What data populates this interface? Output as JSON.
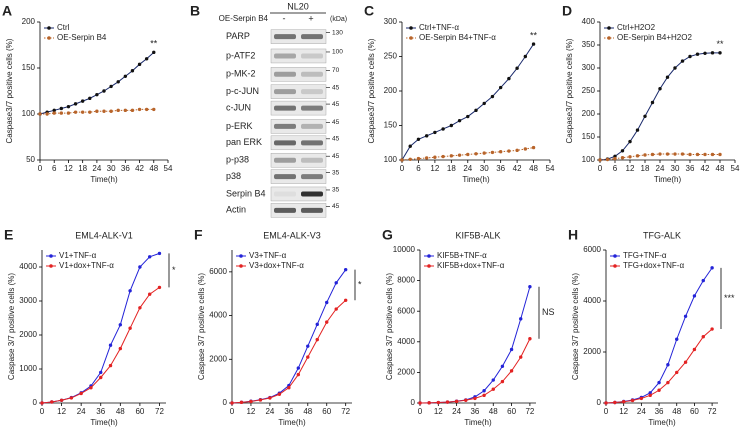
{
  "chart_data": [
    {
      "type": "line",
      "panel": "A",
      "ylabel": "Caspase3/7 positive cells (%)",
      "xlabel": "Time(h)",
      "x": [
        0,
        3,
        6,
        9,
        12,
        15,
        18,
        21,
        24,
        27,
        30,
        33,
        36,
        39,
        42,
        45,
        48
      ],
      "xlim": [
        0,
        54
      ],
      "xticks": [
        0,
        6,
        12,
        18,
        24,
        30,
        36,
        42,
        48,
        54
      ],
      "ylim": [
        50,
        200
      ],
      "yticks": [
        50,
        100,
        150,
        200
      ],
      "annotation": "**",
      "series": [
        {
          "name": "Ctrl",
          "color": "#1a2a6c",
          "line_style": "solid",
          "values": [
            100,
            102,
            104,
            106,
            108,
            111,
            114,
            117,
            121,
            125,
            130,
            135,
            141,
            147,
            154,
            160,
            167
          ]
        },
        {
          "name": "OE-Serpin B4",
          "color": "#b8642a",
          "line_style": "dotted",
          "values": [
            100,
            100,
            101,
            101,
            101,
            102,
            102,
            102,
            103,
            103,
            103,
            104,
            104,
            104,
            105,
            105,
            105
          ]
        }
      ]
    },
    {
      "type": "line",
      "panel": "C",
      "ylabel": "Caspase3/7 positive cells (%)",
      "xlabel": "Time(h)",
      "x": [
        0,
        3,
        6,
        9,
        12,
        15,
        18,
        21,
        24,
        27,
        30,
        33,
        36,
        39,
        42,
        45,
        48
      ],
      "xlim": [
        0,
        54
      ],
      "xticks": [
        0,
        6,
        12,
        18,
        24,
        30,
        36,
        42,
        48,
        54
      ],
      "ylim": [
        100,
        300
      ],
      "yticks": [
        100,
        150,
        200,
        250,
        300
      ],
      "annotation": "**",
      "series": [
        {
          "name": "Ctrl+TNF-α",
          "color": "#1a2a6c",
          "line_style": "solid",
          "values": [
            100,
            120,
            130,
            135,
            140,
            145,
            150,
            157,
            163,
            172,
            182,
            192,
            205,
            218,
            233,
            250,
            268
          ]
        },
        {
          "name": "OE-Serpin B4+TNF-α",
          "color": "#b8642a",
          "line_style": "dotted",
          "values": [
            100,
            101,
            102,
            103,
            104,
            105,
            106,
            107,
            108,
            109,
            110,
            111,
            112,
            113,
            114,
            116,
            118
          ]
        }
      ]
    },
    {
      "type": "line",
      "panel": "D",
      "ylabel": "Caspase3/7 positive cells (%)",
      "xlabel": "Time(h)",
      "x": [
        0,
        3,
        6,
        9,
        12,
        15,
        18,
        21,
        24,
        27,
        30,
        33,
        36,
        39,
        42,
        45,
        48
      ],
      "xlim": [
        0,
        54
      ],
      "xticks": [
        0,
        6,
        12,
        18,
        24,
        30,
        36,
        42,
        48,
        54
      ],
      "ylim": [
        100,
        400
      ],
      "yticks": [
        100,
        150,
        200,
        250,
        300,
        350,
        400
      ],
      "annotation": "**",
      "series": [
        {
          "name": "Ctrl+H2O2",
          "color": "#1a2a6c",
          "line_style": "solid",
          "values": [
            100,
            102,
            108,
            120,
            140,
            165,
            195,
            225,
            255,
            280,
            300,
            315,
            325,
            330,
            332,
            333,
            333
          ]
        },
        {
          "name": "OE-Serpin B4+H2O2",
          "color": "#b8642a",
          "line_style": "dotted",
          "values": [
            100,
            101,
            103,
            105,
            107,
            109,
            111,
            112,
            113,
            113,
            113,
            113,
            112,
            112,
            112,
            112,
            112
          ]
        }
      ]
    },
    {
      "type": "line",
      "panel": "E",
      "title": "EML4-ALK-V1",
      "ylabel": "Caspase 3/7 positive cells (%)",
      "xlabel": "Time(h)",
      "x": [
        0,
        6,
        12,
        18,
        24,
        30,
        36,
        42,
        48,
        54,
        60,
        66,
        72
      ],
      "xlim": [
        0,
        76
      ],
      "xticks": [
        0,
        12,
        24,
        36,
        48,
        60,
        72
      ],
      "ylim": [
        0,
        4500
      ],
      "yticks": [
        0,
        1000,
        2000,
        3000,
        4000
      ],
      "annotation": "*",
      "series": [
        {
          "name": "V1+TNF-α",
          "color": "#2323d8",
          "line_style": "solid",
          "values": [
            0,
            30,
            80,
            160,
            300,
            500,
            900,
            1700,
            2300,
            3300,
            4000,
            4300,
            4400
          ]
        },
        {
          "name": "V1+dox+TNF-α",
          "color": "#e32222",
          "line_style": "solid",
          "values": [
            0,
            30,
            80,
            150,
            280,
            450,
            750,
            1100,
            1600,
            2200,
            2800,
            3200,
            3400
          ]
        }
      ]
    },
    {
      "type": "line",
      "panel": "F",
      "title": "EML4-ALK-V3",
      "ylabel": "Caspase 3/7 positive cells (%)",
      "xlabel": "Time(h)",
      "x": [
        0,
        6,
        12,
        18,
        24,
        30,
        36,
        42,
        48,
        54,
        60,
        66,
        72
      ],
      "xlim": [
        0,
        76
      ],
      "xticks": [
        0,
        12,
        24,
        36,
        48,
        60,
        72
      ],
      "ylim": [
        0,
        7000
      ],
      "yticks": [
        0,
        2000,
        4000,
        6000
      ],
      "annotation": "*",
      "series": [
        {
          "name": "V3+TNF-α",
          "color": "#2323d8",
          "line_style": "solid",
          "values": [
            0,
            30,
            80,
            150,
            250,
            450,
            800,
            1600,
            2600,
            3600,
            4600,
            5500,
            6100
          ]
        },
        {
          "name": "V3+dox+TNF-α",
          "color": "#e32222",
          "line_style": "solid",
          "values": [
            0,
            30,
            70,
            140,
            230,
            400,
            700,
            1300,
            2100,
            2900,
            3700,
            4300,
            4700
          ]
        }
      ]
    },
    {
      "type": "line",
      "panel": "G",
      "title": "KIF5B-ALK",
      "ylabel": "Caspase 3/7 positive cells (%)",
      "xlabel": "Time(h)",
      "x": [
        0,
        6,
        12,
        18,
        24,
        30,
        36,
        42,
        48,
        54,
        60,
        66,
        72
      ],
      "xlim": [
        0,
        76
      ],
      "xticks": [
        0,
        12,
        24,
        36,
        48,
        60,
        72
      ],
      "ylim": [
        0,
        10000
      ],
      "yticks": [
        0,
        2000,
        4000,
        6000,
        8000,
        10000
      ],
      "annotation": "NS",
      "series": [
        {
          "name": "KIF5B+TNF-α",
          "color": "#2323d8",
          "line_style": "solid",
          "values": [
            0,
            10,
            30,
            60,
            120,
            200,
            400,
            800,
            1500,
            2400,
            3500,
            5500,
            7600
          ]
        },
        {
          "name": "KIF5B+dox+TNF-α",
          "color": "#e32222",
          "line_style": "solid",
          "values": [
            0,
            10,
            30,
            60,
            110,
            180,
            300,
            500,
            900,
            1400,
            2100,
            3000,
            4200
          ]
        }
      ]
    },
    {
      "type": "line",
      "panel": "H",
      "title": "TFG-ALK",
      "ylabel": "Caspase 3/7 positive cells (%)",
      "xlabel": "Time(h)",
      "x": [
        0,
        6,
        12,
        18,
        24,
        30,
        36,
        42,
        48,
        54,
        60,
        66,
        72
      ],
      "xlim": [
        0,
        76
      ],
      "xticks": [
        0,
        12,
        24,
        36,
        48,
        60,
        72
      ],
      "ylim": [
        0,
        6000
      ],
      "yticks": [
        0,
        2000,
        4000,
        6000
      ],
      "annotation": "***",
      "series": [
        {
          "name": "TFG+TNF-α",
          "color": "#2323d8",
          "line_style": "solid",
          "values": [
            0,
            20,
            60,
            120,
            220,
            400,
            800,
            1500,
            2500,
            3400,
            4200,
            4800,
            5300
          ]
        },
        {
          "name": "TFG+dox+TNF-α",
          "color": "#e32222",
          "line_style": "solid",
          "values": [
            0,
            20,
            50,
            100,
            180,
            300,
            500,
            800,
            1200,
            1600,
            2100,
            2600,
            2900
          ]
        }
      ]
    }
  ],
  "blot": {
    "panel": "B",
    "cell_line": "NL20",
    "treatment": "OE-Serpin B4",
    "lanes": [
      "-",
      "+"
    ],
    "unit": "(kDa)",
    "proteins": [
      "PARP",
      "p-ATF2",
      "p-MK-2",
      "p-c-JUN",
      "c-JUN",
      "p-ERK",
      "pan ERK",
      "p-p38",
      "p38",
      "Serpin B4",
      "Actin"
    ],
    "markers": [
      130,
      100,
      70,
      45,
      45,
      45,
      45,
      45,
      35,
      35,
      45
    ]
  }
}
